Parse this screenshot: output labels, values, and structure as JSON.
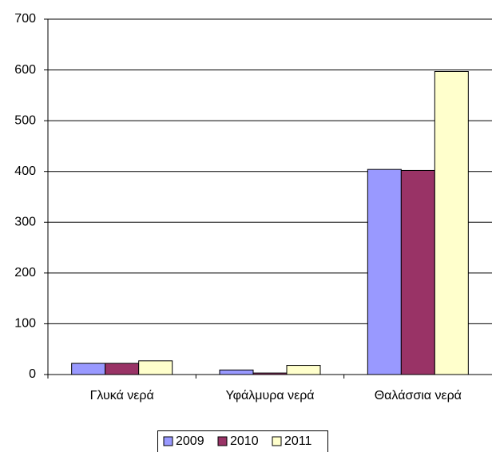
{
  "chart_data": {
    "type": "bar",
    "categories": [
      "Γλυκά νερά",
      "Υφάλμυρα νερά",
      "Θαλάσσια νερά"
    ],
    "series": [
      {
        "name": "2009",
        "color": "#9999ff",
        "values": [
          22,
          9,
          404
        ]
      },
      {
        "name": "2010",
        "color": "#993366",
        "values": [
          22,
          3,
          402
        ]
      },
      {
        "name": "2011",
        "color": "#ffffcc",
        "values": [
          27,
          18,
          597
        ]
      }
    ],
    "ylim": [
      0,
      700
    ],
    "yticks": [
      0,
      100,
      200,
      300,
      400,
      500,
      600,
      700
    ],
    "grid": true,
    "legend": "bottom"
  }
}
